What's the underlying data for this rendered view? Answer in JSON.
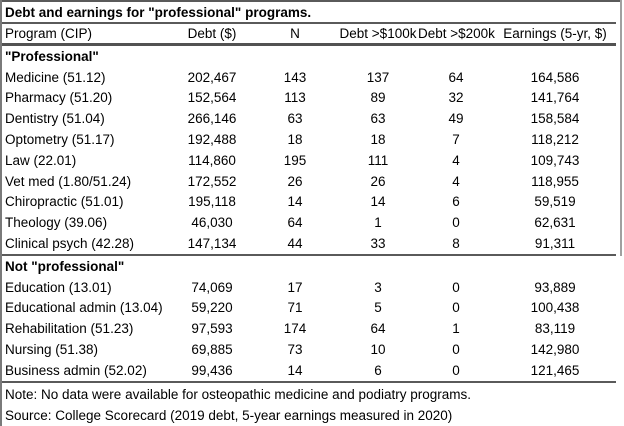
{
  "page": {
    "background": "#ffffff",
    "rule_color": "#5a5a5a",
    "frame_color": "#7a7a7a",
    "text_color": "#000000"
  },
  "chart_data": {
    "type": "table",
    "title": "Debt and earnings for \"professional\" programs.",
    "columns": [
      "Program (CIP)",
      "Debt ($)",
      "N",
      "Debt >$100k",
      "Debt >$200k",
      "Earnings (5-yr, $)"
    ],
    "sections": [
      {
        "label": "\"Professional\"",
        "rows": [
          [
            "Medicine (51.12)",
            "202,467",
            "143",
            "137",
            "64",
            "164,586"
          ],
          [
            "Pharmacy (51.20)",
            "152,564",
            "113",
            "89",
            "32",
            "141,764"
          ],
          [
            "Dentistry (51.04)",
            "266,146",
            "63",
            "63",
            "49",
            "158,584"
          ],
          [
            "Optometry (51.17)",
            "192,488",
            "18",
            "18",
            "7",
            "118,212"
          ],
          [
            "Law (22.01)",
            "114,860",
            "195",
            "111",
            "4",
            "109,743"
          ],
          [
            "Vet med (1.80/51.24)",
            "172,552",
            "26",
            "26",
            "4",
            "118,955"
          ],
          [
            "Chiropractic (51.01)",
            "195,118",
            "14",
            "14",
            "6",
            "59,519"
          ],
          [
            "Theology (39.06)",
            "46,030",
            "64",
            "1",
            "0",
            "62,631"
          ],
          [
            "Clinical psych (42.28)",
            "147,134",
            "44",
            "33",
            "8",
            "91,311"
          ]
        ]
      },
      {
        "label": "Not \"professional\"",
        "rows": [
          [
            "Education (13.01)",
            "74,069",
            "17",
            "3",
            "0",
            "93,889"
          ],
          [
            "Educational admin (13.04)",
            "59,220",
            "71",
            "5",
            "0",
            "100,438"
          ],
          [
            "Rehabilitation (51.23)",
            "97,593",
            "174",
            "64",
            "1",
            "83,119"
          ],
          [
            "Nursing (51.38)",
            "69,885",
            "73",
            "10",
            "0",
            "142,980"
          ],
          [
            "Business admin (52.02)",
            "99,436",
            "14",
            "6",
            "0",
            "121,465"
          ]
        ]
      }
    ],
    "note": "Note: No data were available for osteopathic medicine and podiatry programs.",
    "source": "Source: College Scorecard (2019 debt, 5-year earnings measured in 2020)"
  }
}
